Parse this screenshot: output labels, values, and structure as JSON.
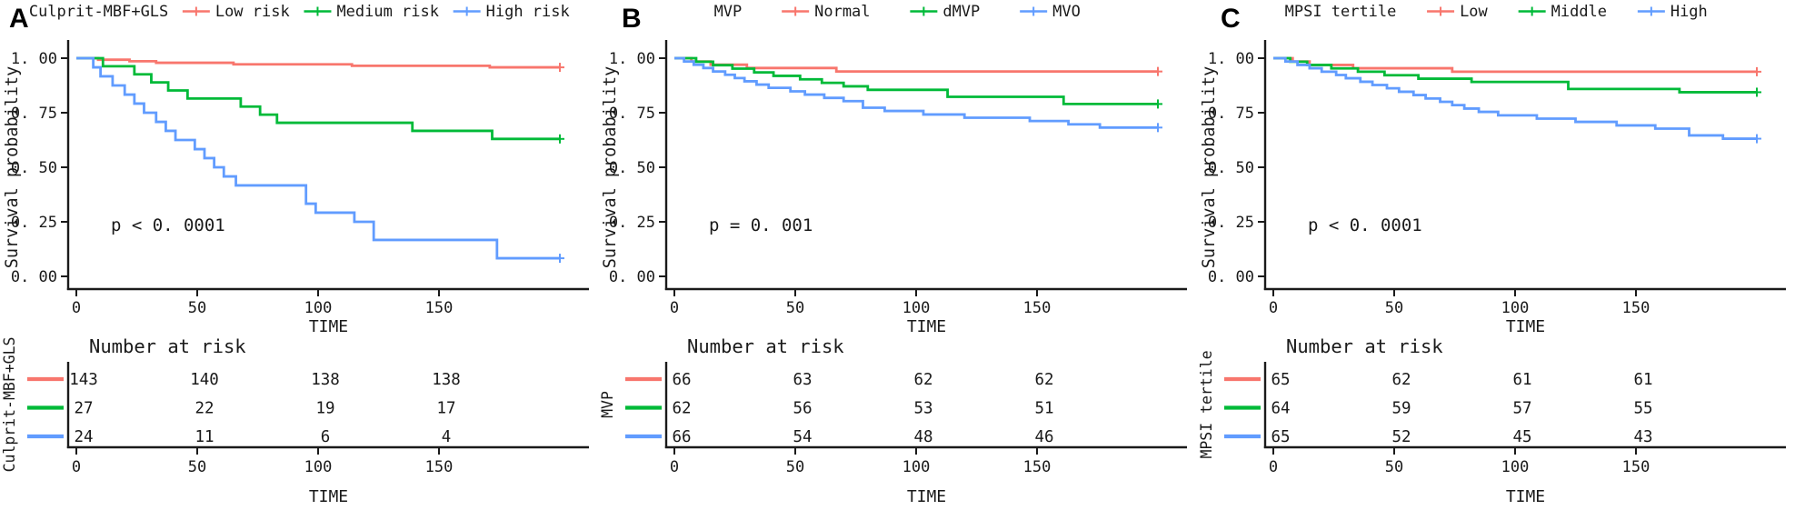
{
  "figure": {
    "background": "#ffffff",
    "axis_color": "#1a1a1a"
  },
  "chart_data": [
    {
      "type": "line",
      "subtype": "kaplan_meier_step",
      "panel_letter": "A",
      "legend_title": "Culprit-MBF+GLS",
      "legend_gap": 16,
      "legend_items": [
        {
          "label": "Low risk",
          "color": "#F8766D"
        },
        {
          "label": "Medium risk",
          "color": "#00BA38"
        },
        {
          "label": "High risk",
          "color": "#619CFF"
        }
      ],
      "pvalue": "p < 0. 0001",
      "xlabel": "TIME",
      "ylabel": "Survival probability",
      "xticks": [
        0,
        50,
        100,
        150
      ],
      "yticks": [
        0,
        0.25,
        0.5,
        0.75,
        1
      ],
      "ytick_labels": [
        "0. 00",
        "0. 25",
        "0. 50",
        "0. 75",
        "1. 00"
      ],
      "xlim": [
        -6,
        212
      ],
      "ylim": [
        0,
        1.0
      ],
      "grid": false,
      "legend_position": "top",
      "series": [
        {
          "name": "Low risk",
          "color": "#F8766D",
          "censor_at_end": true,
          "points": [
            [
              0,
              1
            ],
            [
              9,
              0.993
            ],
            [
              22,
              0.986
            ],
            [
              33,
              0.979
            ],
            [
              65,
              0.972
            ],
            [
              114,
              0.965
            ],
            [
              171,
              0.958
            ],
            [
              200,
              0.958
            ]
          ]
        },
        {
          "name": "Medium risk",
          "color": "#00BA38",
          "censor_at_end": true,
          "points": [
            [
              0,
              1
            ],
            [
              11,
              0.963
            ],
            [
              24,
              0.926
            ],
            [
              31,
              0.889
            ],
            [
              38,
              0.852
            ],
            [
              46,
              0.815
            ],
            [
              68,
              0.778
            ],
            [
              76,
              0.741
            ],
            [
              83,
              0.704
            ],
            [
              139,
              0.667
            ],
            [
              172,
              0.63
            ],
            [
              200,
              0.63
            ]
          ]
        },
        {
          "name": "High risk",
          "color": "#619CFF",
          "censor_at_end": true,
          "points": [
            [
              0,
              1
            ],
            [
              7,
              0.958
            ],
            [
              10,
              0.917
            ],
            [
              15,
              0.875
            ],
            [
              20,
              0.833
            ],
            [
              24,
              0.792
            ],
            [
              28,
              0.75
            ],
            [
              33,
              0.708
            ],
            [
              37,
              0.667
            ],
            [
              41,
              0.625
            ],
            [
              49,
              0.583
            ],
            [
              53,
              0.542
            ],
            [
              57,
              0.5
            ],
            [
              61,
              0.458
            ],
            [
              66,
              0.417
            ],
            [
              95,
              0.333
            ],
            [
              99,
              0.292
            ],
            [
              115,
              0.25
            ],
            [
              123,
              0.167
            ],
            [
              174,
              0.083
            ],
            [
              200,
              0.083
            ]
          ]
        }
      ],
      "risk_table": {
        "title": "Number at risk",
        "group_label": "Culprit-MBF+GLS",
        "columns": [
          0,
          50,
          100,
          150
        ],
        "xlabel": "TIME",
        "rows": [
          {
            "name": "Low risk",
            "color": "#F8766D",
            "values": [
              143,
              140,
              138,
              138
            ]
          },
          {
            "name": "Medium risk",
            "color": "#00BA38",
            "values": [
              27,
              22,
              19,
              17
            ]
          },
          {
            "name": "High risk",
            "color": "#619CFF",
            "values": [
              24,
              11,
              6,
              4
            ]
          }
        ]
      }
    },
    {
      "type": "line",
      "subtype": "kaplan_meier_step",
      "panel_letter": "B",
      "legend_title": "MVP",
      "legend_gap": 44,
      "legend_items": [
        {
          "label": "Normal",
          "color": "#F8766D"
        },
        {
          "label": "dMVP",
          "color": "#00BA38"
        },
        {
          "label": "MVO",
          "color": "#619CFF"
        }
      ],
      "pvalue": "p = 0. 001",
      "xlabel": "TIME",
      "ylabel": "Survival probability",
      "xticks": [
        0,
        50,
        100,
        150
      ],
      "yticks": [
        0,
        0.25,
        0.5,
        0.75,
        1
      ],
      "ytick_labels": [
        "0. 00",
        "0. 25",
        "0. 50",
        "0. 75",
        "1. 00"
      ],
      "xlim": [
        -6,
        212
      ],
      "ylim": [
        0,
        1.0
      ],
      "grid": false,
      "legend_position": "top",
      "series": [
        {
          "name": "Normal",
          "color": "#F8766D",
          "censor_at_end": true,
          "points": [
            [
              0,
              1
            ],
            [
              7,
              0.985
            ],
            [
              15,
              0.97
            ],
            [
              30,
              0.955
            ],
            [
              67,
              0.939
            ],
            [
              200,
              0.939
            ]
          ]
        },
        {
          "name": "dMVP",
          "color": "#00BA38",
          "censor_at_end": true,
          "points": [
            [
              0,
              1
            ],
            [
              9,
              0.984
            ],
            [
              16,
              0.968
            ],
            [
              24,
              0.952
            ],
            [
              33,
              0.935
            ],
            [
              41,
              0.919
            ],
            [
              52,
              0.903
            ],
            [
              61,
              0.887
            ],
            [
              70,
              0.871
            ],
            [
              80,
              0.855
            ],
            [
              113,
              0.823
            ],
            [
              161,
              0.79
            ],
            [
              200,
              0.79
            ]
          ]
        },
        {
          "name": "MVO",
          "color": "#619CFF",
          "censor_at_end": true,
          "points": [
            [
              0,
              1
            ],
            [
              4,
              0.985
            ],
            [
              8,
              0.97
            ],
            [
              12,
              0.955
            ],
            [
              16,
              0.939
            ],
            [
              21,
              0.924
            ],
            [
              25,
              0.909
            ],
            [
              29,
              0.894
            ],
            [
              34,
              0.879
            ],
            [
              39,
              0.864
            ],
            [
              48,
              0.848
            ],
            [
              54,
              0.833
            ],
            [
              62,
              0.818
            ],
            [
              70,
              0.803
            ],
            [
              78,
              0.773
            ],
            [
              87,
              0.758
            ],
            [
              103,
              0.742
            ],
            [
              120,
              0.727
            ],
            [
              147,
              0.712
            ],
            [
              163,
              0.697
            ],
            [
              176,
              0.682
            ],
            [
              200,
              0.682
            ]
          ]
        }
      ],
      "risk_table": {
        "title": "Number at risk",
        "group_label": "MVP",
        "columns": [
          0,
          50,
          100,
          150
        ],
        "xlabel": "TIME",
        "rows": [
          {
            "name": "Normal",
            "color": "#F8766D",
            "values": [
              66,
              63,
              62,
              62
            ]
          },
          {
            "name": "dMVP",
            "color": "#00BA38",
            "values": [
              62,
              56,
              53,
              51
            ]
          },
          {
            "name": "MVO",
            "color": "#619CFF",
            "values": [
              66,
              54,
              48,
              46
            ]
          }
        ]
      }
    },
    {
      "type": "line",
      "subtype": "kaplan_meier_step",
      "panel_letter": "C",
      "legend_title": "MPSI tertile",
      "legend_gap": 34,
      "legend_items": [
        {
          "label": "Low",
          "color": "#F8766D"
        },
        {
          "label": "Middle",
          "color": "#00BA38"
        },
        {
          "label": "High",
          "color": "#619CFF"
        }
      ],
      "pvalue": "p < 0. 0001",
      "xlabel": "TIME",
      "ylabel": "Survival probability",
      "xticks": [
        0,
        50,
        100,
        150
      ],
      "yticks": [
        0,
        0.25,
        0.5,
        0.75,
        1
      ],
      "ytick_labels": [
        "0. 00",
        "0. 25",
        "0. 50",
        "0. 75",
        "1. 00"
      ],
      "xlim": [
        -6,
        212
      ],
      "ylim": [
        0,
        1.0
      ],
      "grid": false,
      "legend_position": "top",
      "series": [
        {
          "name": "Low",
          "color": "#F8766D",
          "censor_at_end": true,
          "points": [
            [
              0,
              1
            ],
            [
              8,
              0.985
            ],
            [
              15,
              0.969
            ],
            [
              33,
              0.954
            ],
            [
              74,
              0.938
            ],
            [
              200,
              0.938
            ]
          ]
        },
        {
          "name": "Middle",
          "color": "#00BA38",
          "censor_at_end": true,
          "points": [
            [
              0,
              1
            ],
            [
              7,
              0.984
            ],
            [
              14,
              0.969
            ],
            [
              24,
              0.953
            ],
            [
              35,
              0.938
            ],
            [
              46,
              0.922
            ],
            [
              60,
              0.906
            ],
            [
              82,
              0.891
            ],
            [
              122,
              0.859
            ],
            [
              168,
              0.844
            ],
            [
              200,
              0.844
            ]
          ]
        },
        {
          "name": "High",
          "color": "#619CFF",
          "censor_at_end": true,
          "points": [
            [
              0,
              1
            ],
            [
              5,
              0.985
            ],
            [
              10,
              0.969
            ],
            [
              15,
              0.954
            ],
            [
              20,
              0.938
            ],
            [
              26,
              0.923
            ],
            [
              30,
              0.908
            ],
            [
              36,
              0.892
            ],
            [
              41,
              0.877
            ],
            [
              47,
              0.862
            ],
            [
              52,
              0.846
            ],
            [
              58,
              0.831
            ],
            [
              63,
              0.815
            ],
            [
              69,
              0.8
            ],
            [
              74,
              0.785
            ],
            [
              79,
              0.769
            ],
            [
              85,
              0.754
            ],
            [
              93,
              0.738
            ],
            [
              109,
              0.723
            ],
            [
              125,
              0.708
            ],
            [
              142,
              0.692
            ],
            [
              158,
              0.677
            ],
            [
              172,
              0.646
            ],
            [
              186,
              0.631
            ],
            [
              200,
              0.631
            ]
          ]
        }
      ],
      "risk_table": {
        "title": "Number at risk",
        "group_label": "MPSI tertile",
        "columns": [
          0,
          50,
          100,
          150
        ],
        "xlabel": "TIME",
        "rows": [
          {
            "name": "Low",
            "color": "#F8766D",
            "values": [
              65,
              62,
              61,
              61
            ]
          },
          {
            "name": "Middle",
            "color": "#00BA38",
            "values": [
              64,
              59,
              57,
              55
            ]
          },
          {
            "name": "High",
            "color": "#619CFF",
            "values": [
              65,
              52,
              45,
              43
            ]
          }
        ]
      }
    }
  ]
}
